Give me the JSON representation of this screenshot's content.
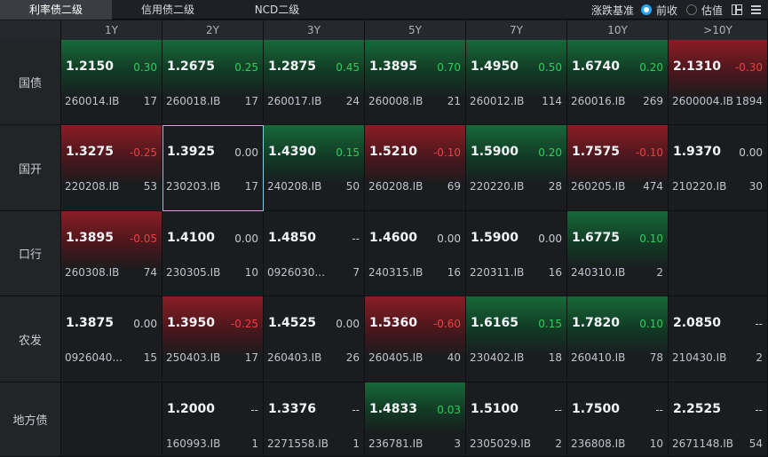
{
  "tabs": [
    "利率债二级",
    "信用债二级",
    "NCD二级"
  ],
  "basis": {
    "label": "涨跌基准",
    "options": [
      "前收",
      "估值"
    ],
    "selected": "前收"
  },
  "colors": {
    "up": "#2ecf5b",
    "down": "#f23d45",
    "radio_on": "#1ea7ff"
  },
  "grid": {
    "columns": [
      "1Y",
      "2Y",
      "3Y",
      "5Y",
      "7Y",
      "10Y",
      ">10Y"
    ],
    "rows": [
      {
        "label": "国债",
        "cells": [
          {
            "yield": "1.2150",
            "chg": "0.30",
            "code": "260014.IB",
            "vol": "17"
          },
          {
            "yield": "1.2675",
            "chg": "0.25",
            "code": "260018.IB",
            "vol": "17"
          },
          {
            "yield": "1.2875",
            "chg": "0.45",
            "code": "260017.IB",
            "vol": "24"
          },
          {
            "yield": "1.3895",
            "chg": "0.70",
            "code": "260008.IB",
            "vol": "21"
          },
          {
            "yield": "1.4950",
            "chg": "0.50",
            "code": "260012.IB",
            "vol": "114"
          },
          {
            "yield": "1.6740",
            "chg": "0.20",
            "code": "260016.IB",
            "vol": "269"
          },
          {
            "yield": "2.1310",
            "chg": "-0.30",
            "code": "2600004.IB",
            "vol": "1894"
          }
        ]
      },
      {
        "label": "国开",
        "cells": [
          {
            "yield": "1.3275",
            "chg": "-0.25",
            "code": "220208.IB",
            "vol": "53"
          },
          {
            "yield": "1.3925",
            "chg": "0.00",
            "code": "230203.IB",
            "vol": "17"
          },
          {
            "yield": "1.4390",
            "chg": "0.15",
            "code": "240208.IB",
            "vol": "50"
          },
          {
            "yield": "1.5210",
            "chg": "-0.10",
            "code": "260208.IB",
            "vol": "69"
          },
          {
            "yield": "1.5900",
            "chg": "0.20",
            "code": "220220.IB",
            "vol": "28"
          },
          {
            "yield": "1.7575",
            "chg": "-0.10",
            "code": "260205.IB",
            "vol": "474"
          },
          {
            "yield": "1.9370",
            "chg": "0.00",
            "code": "210220.IB",
            "vol": "30"
          }
        ]
      },
      {
        "label": "口行",
        "cells": [
          {
            "yield": "1.3895",
            "chg": "-0.05",
            "code": "260308.IB",
            "vol": "74"
          },
          {
            "yield": "1.4100",
            "chg": "0.00",
            "code": "230305.IB",
            "vol": "10"
          },
          {
            "yield": "1.4850",
            "chg": "--",
            "code": "0926030...",
            "vol": "7"
          },
          {
            "yield": "1.4600",
            "chg": "0.00",
            "code": "240315.IB",
            "vol": "16"
          },
          {
            "yield": "1.5900",
            "chg": "0.00",
            "code": "220311.IB",
            "vol": "16"
          },
          {
            "yield": "1.6775",
            "chg": "0.10",
            "code": "240310.IB",
            "vol": "2"
          },
          {
            "yield": "",
            "chg": "",
            "code": "",
            "vol": ""
          }
        ]
      },
      {
        "label": "农发",
        "cells": [
          {
            "yield": "1.3875",
            "chg": "0.00",
            "code": "0926040...",
            "vol": "15"
          },
          {
            "yield": "1.3950",
            "chg": "-0.25",
            "code": "250403.IB",
            "vol": "17"
          },
          {
            "yield": "1.4525",
            "chg": "0.00",
            "code": "260403.IB",
            "vol": "26"
          },
          {
            "yield": "1.5360",
            "chg": "-0.60",
            "code": "260405.IB",
            "vol": "40"
          },
          {
            "yield": "1.6165",
            "chg": "0.15",
            "code": "230402.IB",
            "vol": "18"
          },
          {
            "yield": "1.7820",
            "chg": "0.10",
            "code": "260410.IB",
            "vol": "78"
          },
          {
            "yield": "2.0850",
            "chg": "--",
            "code": "210430.IB",
            "vol": "2"
          }
        ]
      },
      {
        "label": "地方债",
        "cells": [
          {
            "yield": "",
            "chg": "",
            "code": "",
            "vol": ""
          },
          {
            "yield": "1.2000",
            "chg": "--",
            "code": "160993.IB",
            "vol": "1"
          },
          {
            "yield": "1.3376",
            "chg": "--",
            "code": "2271558.IB",
            "vol": "1"
          },
          {
            "yield": "1.4833",
            "chg": "0.03",
            "code": "236781.IB",
            "vol": "3"
          },
          {
            "yield": "1.5100",
            "chg": "--",
            "code": "2305029.IB",
            "vol": "2"
          },
          {
            "yield": "1.7500",
            "chg": "--",
            "code": "236808.IB",
            "vol": "10"
          },
          {
            "yield": "2.2525",
            "chg": "--",
            "code": "2671148.IB",
            "vol": "54"
          }
        ]
      }
    ]
  }
}
